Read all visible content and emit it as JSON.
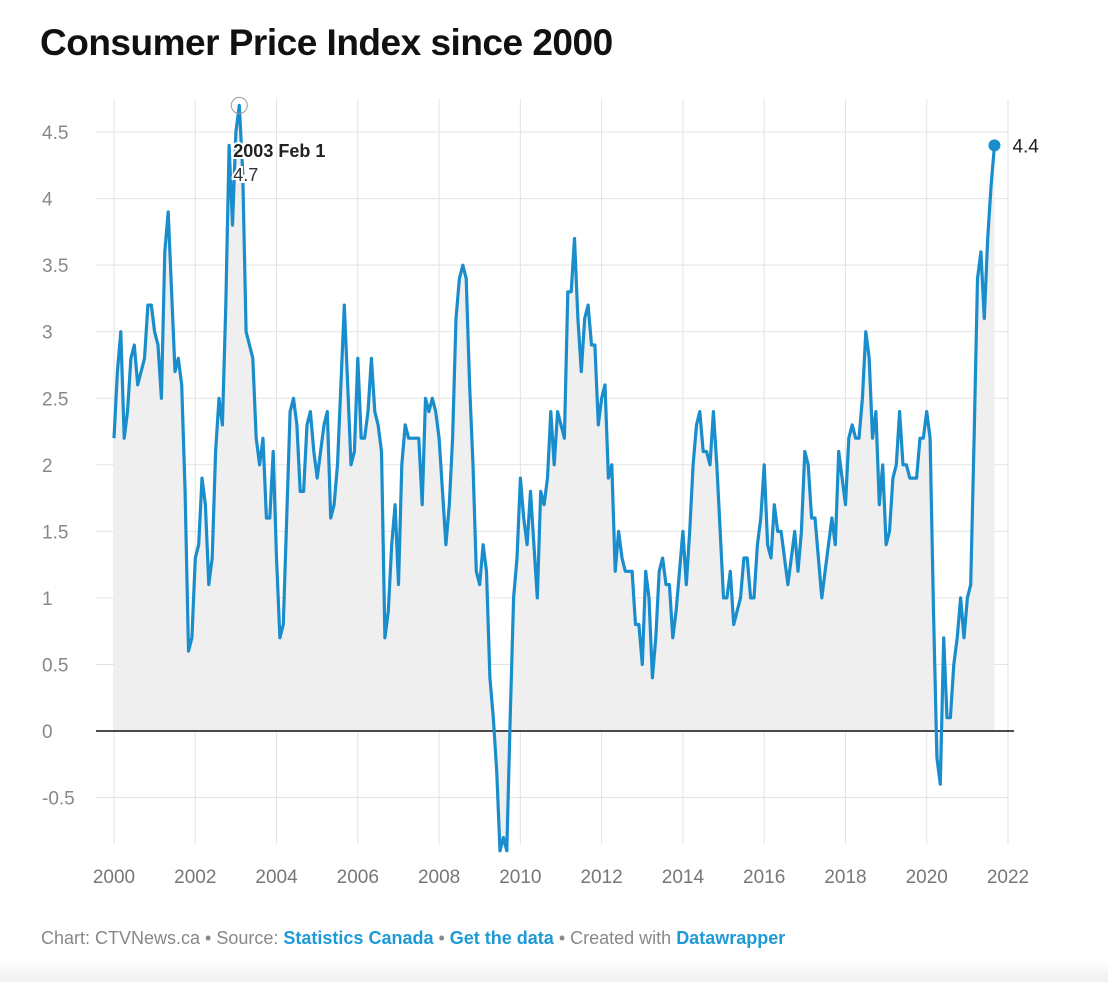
{
  "title": "Consumer Price Index since 2000",
  "footer": {
    "chart_by": "Chart: CTVNews.ca",
    "sep": " • ",
    "source_prefix": "Source: ",
    "source_link": "Statistics Canada",
    "get_data": "Get the data",
    "created_prefix": "Created with ",
    "created_link": "Datawrapper"
  },
  "colors": {
    "line": "#1a8dcc",
    "area": "#efeff0",
    "link": "#1e9ad6",
    "grid": "#e3e3e3"
  },
  "chart_data": {
    "type": "line",
    "title": "Consumer Price Index since 2000",
    "xlabel": "",
    "ylabel": "",
    "x_start": "2000-01",
    "frequency": "monthly",
    "xlim": [
      2000,
      2022
    ],
    "ylim": [
      -0.85,
      4.75
    ],
    "x_ticks": [
      "2000",
      "2002",
      "2004",
      "2006",
      "2008",
      "2010",
      "2012",
      "2014",
      "2016",
      "2018",
      "2020",
      "2022"
    ],
    "y_ticks": [
      "-0.5",
      "0",
      "0.5",
      "1",
      "1.5",
      "2",
      "2.5",
      "3",
      "3.5",
      "4",
      "4.5"
    ],
    "grid": true,
    "area_fill": true,
    "values": [
      2.2,
      2.7,
      3.0,
      2.2,
      2.4,
      2.8,
      2.9,
      2.6,
      2.7,
      2.8,
      3.2,
      3.2,
      3.0,
      2.9,
      2.5,
      3.6,
      3.9,
      3.3,
      2.7,
      2.8,
      2.6,
      1.8,
      0.6,
      0.7,
      1.3,
      1.4,
      1.9,
      1.7,
      1.1,
      1.3,
      2.1,
      2.5,
      2.3,
      3.2,
      4.4,
      3.8,
      4.5,
      4.7,
      4.2,
      3.0,
      2.9,
      2.8,
      2.2,
      2.0,
      2.2,
      1.6,
      1.6,
      2.1,
      1.3,
      0.7,
      0.8,
      1.6,
      2.4,
      2.5,
      2.3,
      1.8,
      1.8,
      2.3,
      2.4,
      2.1,
      1.9,
      2.1,
      2.3,
      2.4,
      1.6,
      1.7,
      2.0,
      2.6,
      3.2,
      2.6,
      2.0,
      2.1,
      2.8,
      2.2,
      2.2,
      2.4,
      2.8,
      2.4,
      2.3,
      2.1,
      0.7,
      0.9,
      1.4,
      1.7,
      1.1,
      2.0,
      2.3,
      2.2,
      2.2,
      2.2,
      2.2,
      1.7,
      2.5,
      2.4,
      2.5,
      2.4,
      2.2,
      1.8,
      1.4,
      1.7,
      2.2,
      3.1,
      3.4,
      3.5,
      3.4,
      2.6,
      2.0,
      1.2,
      1.1,
      1.4,
      1.2,
      0.4,
      0.1,
      -0.3,
      -0.9,
      -0.8,
      -0.9,
      0.1,
      1.0,
      1.3,
      1.9,
      1.6,
      1.4,
      1.8,
      1.4,
      1.0,
      1.8,
      1.7,
      1.9,
      2.4,
      2.0,
      2.4,
      2.3,
      2.2,
      3.3,
      3.3,
      3.7,
      3.1,
      2.7,
      3.1,
      3.2,
      2.9,
      2.9,
      2.3,
      2.5,
      2.6,
      1.9,
      2.0,
      1.2,
      1.5,
      1.3,
      1.2,
      1.2,
      1.2,
      0.8,
      0.8,
      0.5,
      1.2,
      1.0,
      0.4,
      0.7,
      1.2,
      1.3,
      1.1,
      1.1,
      0.7,
      0.9,
      1.2,
      1.5,
      1.1,
      1.5,
      2.0,
      2.3,
      2.4,
      2.1,
      2.1,
      2.0,
      2.4,
      2.0,
      1.5,
      1.0,
      1.0,
      1.2,
      0.8,
      0.9,
      1.0,
      1.3,
      1.3,
      1.0,
      1.0,
      1.4,
      1.6,
      2.0,
      1.4,
      1.3,
      1.7,
      1.5,
      1.5,
      1.3,
      1.1,
      1.3,
      1.5,
      1.2,
      1.5,
      2.1,
      2.0,
      1.6,
      1.6,
      1.3,
      1.0,
      1.2,
      1.4,
      1.6,
      1.4,
      2.1,
      1.9,
      1.7,
      2.2,
      2.3,
      2.2,
      2.2,
      2.5,
      3.0,
      2.8,
      2.2,
      2.4,
      1.7,
      2.0,
      1.4,
      1.5,
      1.9,
      2.0,
      2.4,
      2.0,
      2.0,
      1.9,
      1.9,
      1.9,
      2.2,
      2.2,
      2.4,
      2.2,
      0.9,
      -0.2,
      -0.4,
      0.7,
      0.1,
      0.1,
      0.5,
      0.7,
      1.0,
      0.7,
      1.0,
      1.1,
      2.2,
      3.4,
      3.6,
      3.1,
      3.7,
      4.1,
      4.4
    ],
    "annotations": [
      {
        "date_label": "2003 Feb 1",
        "value_label": "4.7",
        "index": 37
      },
      {
        "value_label": "4.4",
        "index": 260
      }
    ]
  }
}
